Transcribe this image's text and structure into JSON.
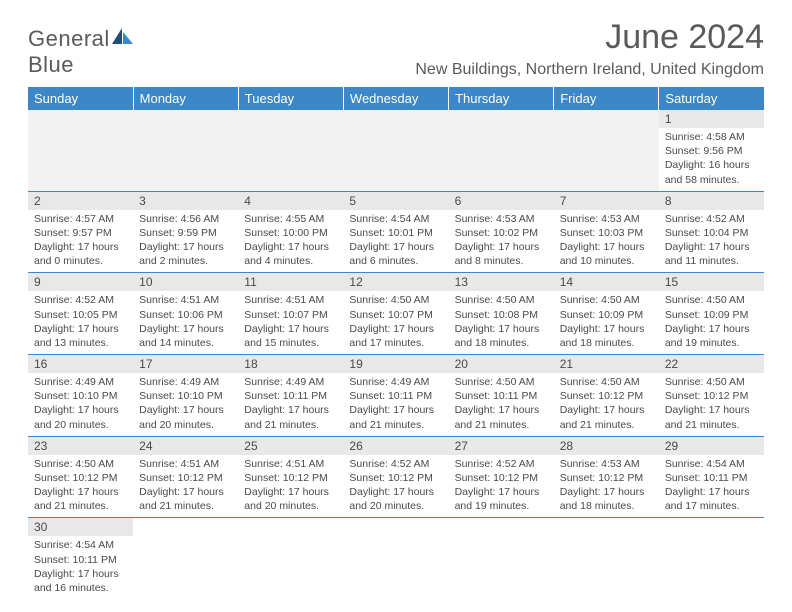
{
  "brand": {
    "part1": "General",
    "part2": "Blue"
  },
  "title": "June 2024",
  "location": "New Buildings, Northern Ireland, United Kingdom",
  "colors": {
    "header_bg": "#3b87c8",
    "header_text": "#ffffff",
    "daynum_bg": "#e8e8e8",
    "text": "#4a4a4a",
    "rule": "#3b87c8",
    "logo_dark": "#1f4e79",
    "logo_light": "#3b87c8"
  },
  "typography": {
    "title_fontsize": 34,
    "location_fontsize": 16,
    "dayheader_fontsize": 13,
    "cell_fontsize": 10.5
  },
  "day_headers": [
    "Sunday",
    "Monday",
    "Tuesday",
    "Wednesday",
    "Thursday",
    "Friday",
    "Saturday"
  ],
  "weeks": [
    [
      null,
      null,
      null,
      null,
      null,
      null,
      {
        "n": "1",
        "sunrise": "Sunrise: 4:58 AM",
        "sunset": "Sunset: 9:56 PM",
        "daylight1": "Daylight: 16 hours",
        "daylight2": "and 58 minutes."
      }
    ],
    [
      {
        "n": "2",
        "sunrise": "Sunrise: 4:57 AM",
        "sunset": "Sunset: 9:57 PM",
        "daylight1": "Daylight: 17 hours",
        "daylight2": "and 0 minutes."
      },
      {
        "n": "3",
        "sunrise": "Sunrise: 4:56 AM",
        "sunset": "Sunset: 9:59 PM",
        "daylight1": "Daylight: 17 hours",
        "daylight2": "and 2 minutes."
      },
      {
        "n": "4",
        "sunrise": "Sunrise: 4:55 AM",
        "sunset": "Sunset: 10:00 PM",
        "daylight1": "Daylight: 17 hours",
        "daylight2": "and 4 minutes."
      },
      {
        "n": "5",
        "sunrise": "Sunrise: 4:54 AM",
        "sunset": "Sunset: 10:01 PM",
        "daylight1": "Daylight: 17 hours",
        "daylight2": "and 6 minutes."
      },
      {
        "n": "6",
        "sunrise": "Sunrise: 4:53 AM",
        "sunset": "Sunset: 10:02 PM",
        "daylight1": "Daylight: 17 hours",
        "daylight2": "and 8 minutes."
      },
      {
        "n": "7",
        "sunrise": "Sunrise: 4:53 AM",
        "sunset": "Sunset: 10:03 PM",
        "daylight1": "Daylight: 17 hours",
        "daylight2": "and 10 minutes."
      },
      {
        "n": "8",
        "sunrise": "Sunrise: 4:52 AM",
        "sunset": "Sunset: 10:04 PM",
        "daylight1": "Daylight: 17 hours",
        "daylight2": "and 11 minutes."
      }
    ],
    [
      {
        "n": "9",
        "sunrise": "Sunrise: 4:52 AM",
        "sunset": "Sunset: 10:05 PM",
        "daylight1": "Daylight: 17 hours",
        "daylight2": "and 13 minutes."
      },
      {
        "n": "10",
        "sunrise": "Sunrise: 4:51 AM",
        "sunset": "Sunset: 10:06 PM",
        "daylight1": "Daylight: 17 hours",
        "daylight2": "and 14 minutes."
      },
      {
        "n": "11",
        "sunrise": "Sunrise: 4:51 AM",
        "sunset": "Sunset: 10:07 PM",
        "daylight1": "Daylight: 17 hours",
        "daylight2": "and 15 minutes."
      },
      {
        "n": "12",
        "sunrise": "Sunrise: 4:50 AM",
        "sunset": "Sunset: 10:07 PM",
        "daylight1": "Daylight: 17 hours",
        "daylight2": "and 17 minutes."
      },
      {
        "n": "13",
        "sunrise": "Sunrise: 4:50 AM",
        "sunset": "Sunset: 10:08 PM",
        "daylight1": "Daylight: 17 hours",
        "daylight2": "and 18 minutes."
      },
      {
        "n": "14",
        "sunrise": "Sunrise: 4:50 AM",
        "sunset": "Sunset: 10:09 PM",
        "daylight1": "Daylight: 17 hours",
        "daylight2": "and 18 minutes."
      },
      {
        "n": "15",
        "sunrise": "Sunrise: 4:50 AM",
        "sunset": "Sunset: 10:09 PM",
        "daylight1": "Daylight: 17 hours",
        "daylight2": "and 19 minutes."
      }
    ],
    [
      {
        "n": "16",
        "sunrise": "Sunrise: 4:49 AM",
        "sunset": "Sunset: 10:10 PM",
        "daylight1": "Daylight: 17 hours",
        "daylight2": "and 20 minutes."
      },
      {
        "n": "17",
        "sunrise": "Sunrise: 4:49 AM",
        "sunset": "Sunset: 10:10 PM",
        "daylight1": "Daylight: 17 hours",
        "daylight2": "and 20 minutes."
      },
      {
        "n": "18",
        "sunrise": "Sunrise: 4:49 AM",
        "sunset": "Sunset: 10:11 PM",
        "daylight1": "Daylight: 17 hours",
        "daylight2": "and 21 minutes."
      },
      {
        "n": "19",
        "sunrise": "Sunrise: 4:49 AM",
        "sunset": "Sunset: 10:11 PM",
        "daylight1": "Daylight: 17 hours",
        "daylight2": "and 21 minutes."
      },
      {
        "n": "20",
        "sunrise": "Sunrise: 4:50 AM",
        "sunset": "Sunset: 10:11 PM",
        "daylight1": "Daylight: 17 hours",
        "daylight2": "and 21 minutes."
      },
      {
        "n": "21",
        "sunrise": "Sunrise: 4:50 AM",
        "sunset": "Sunset: 10:12 PM",
        "daylight1": "Daylight: 17 hours",
        "daylight2": "and 21 minutes."
      },
      {
        "n": "22",
        "sunrise": "Sunrise: 4:50 AM",
        "sunset": "Sunset: 10:12 PM",
        "daylight1": "Daylight: 17 hours",
        "daylight2": "and 21 minutes."
      }
    ],
    [
      {
        "n": "23",
        "sunrise": "Sunrise: 4:50 AM",
        "sunset": "Sunset: 10:12 PM",
        "daylight1": "Daylight: 17 hours",
        "daylight2": "and 21 minutes."
      },
      {
        "n": "24",
        "sunrise": "Sunrise: 4:51 AM",
        "sunset": "Sunset: 10:12 PM",
        "daylight1": "Daylight: 17 hours",
        "daylight2": "and 21 minutes."
      },
      {
        "n": "25",
        "sunrise": "Sunrise: 4:51 AM",
        "sunset": "Sunset: 10:12 PM",
        "daylight1": "Daylight: 17 hours",
        "daylight2": "and 20 minutes."
      },
      {
        "n": "26",
        "sunrise": "Sunrise: 4:52 AM",
        "sunset": "Sunset: 10:12 PM",
        "daylight1": "Daylight: 17 hours",
        "daylight2": "and 20 minutes."
      },
      {
        "n": "27",
        "sunrise": "Sunrise: 4:52 AM",
        "sunset": "Sunset: 10:12 PM",
        "daylight1": "Daylight: 17 hours",
        "daylight2": "and 19 minutes."
      },
      {
        "n": "28",
        "sunrise": "Sunrise: 4:53 AM",
        "sunset": "Sunset: 10:12 PM",
        "daylight1": "Daylight: 17 hours",
        "daylight2": "and 18 minutes."
      },
      {
        "n": "29",
        "sunrise": "Sunrise: 4:54 AM",
        "sunset": "Sunset: 10:11 PM",
        "daylight1": "Daylight: 17 hours",
        "daylight2": "and 17 minutes."
      }
    ],
    [
      {
        "n": "30",
        "sunrise": "Sunrise: 4:54 AM",
        "sunset": "Sunset: 10:11 PM",
        "daylight1": "Daylight: 17 hours",
        "daylight2": "and 16 minutes."
      },
      null,
      null,
      null,
      null,
      null,
      null
    ]
  ]
}
